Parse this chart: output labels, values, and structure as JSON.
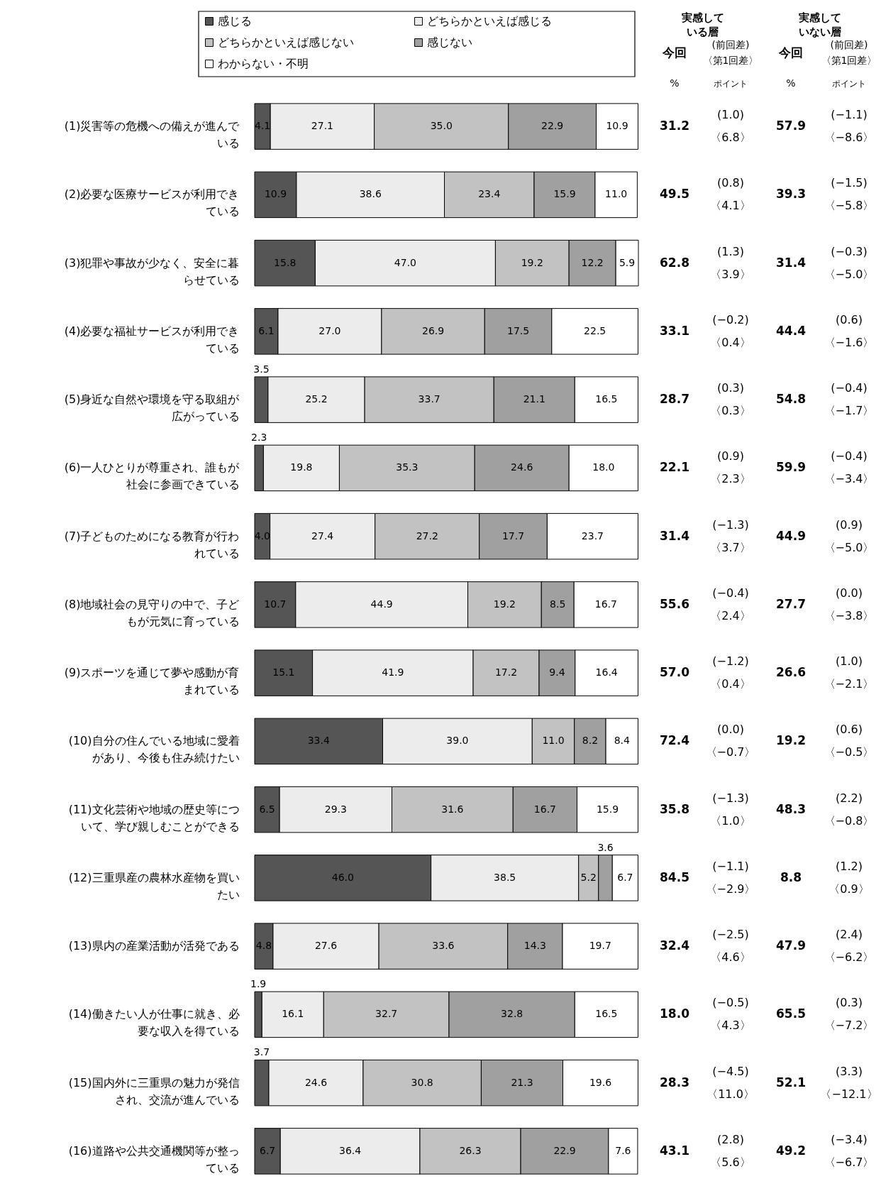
{
  "chart_data": {
    "type": "bar",
    "orientation": "horizontal",
    "stacked": true,
    "legend": "top",
    "categories": [
      "(1)災害等の危機への備えが進んでいる",
      "(2)必要な医療サービスが利用できている",
      "(3)犯罪や事故が少なく、安全に暮らせている",
      "(4)必要な福祉サービスが利用できている",
      "(5)身近な自然や環境を守る取組が広がっている",
      "(6)一人ひとりが尊重され、誰もが社会に参画できている",
      "(7)子どものためになる教育が行われている",
      "(8)地域社会の見守りの中で、子どもが元気に育っている",
      "(9)スポーツを通じて夢や感動が育まれている",
      "(10)自分の住んでいる地域に愛着があり、今後も住み続けたい",
      "(11)文化芸術や地域の歴史等について、学び親しむことができる",
      "(12)三重県産の農林水産物を買いたい",
      "(13)県内の産業活動が活発である",
      "(14)働きたい人が仕事に就き、必要な収入を得ている",
      "(15)国内外に三重県の魅力が発信され、交流が進んでいる",
      "(16)道路や公共交通機関等が整っている"
    ],
    "series": [
      {
        "name": "感じる",
        "color": "#555555",
        "values": [
          4.1,
          10.9,
          15.8,
          6.1,
          3.5,
          2.3,
          4.0,
          10.7,
          15.1,
          33.4,
          6.5,
          46.0,
          4.8,
          1.9,
          3.7,
          6.7
        ],
        "value_labels": [
          "4.1",
          "10.9",
          "15.8",
          "6.1",
          "3.5",
          "2.3",
          "4.0",
          "10.7",
          "15.1",
          "33.4",
          "6.5",
          "46.0",
          "4.8",
          "1.9",
          "3.7",
          "6.7"
        ]
      },
      {
        "name": "どちらかといえば感じる",
        "color": "#ececec",
        "values": [
          27.1,
          38.6,
          47.0,
          27.0,
          25.2,
          19.8,
          27.4,
          44.9,
          41.9,
          39.0,
          29.3,
          38.5,
          27.6,
          16.1,
          24.6,
          36.4
        ],
        "value_labels": [
          "27.1",
          "38.6",
          "47.0",
          "27.0",
          "25.2",
          "19.8",
          "27.4",
          "44.9",
          "41.9",
          "39.0",
          "29.3",
          "38.5",
          "27.6",
          "16.1",
          "24.6",
          "36.4"
        ]
      },
      {
        "name": "どちらかといえば感じない",
        "color": "#c2c2c2",
        "values": [
          35.0,
          23.4,
          19.2,
          26.9,
          33.7,
          35.3,
          27.2,
          19.2,
          17.2,
          11.0,
          31.6,
          5.2,
          33.6,
          32.7,
          30.8,
          26.3
        ],
        "value_labels": [
          "35.0",
          "23.4",
          "19.2",
          "26.9",
          "33.7",
          "35.3",
          "27.2",
          "19.2",
          "17.2",
          "11.0",
          "31.6",
          "5.2",
          "33.6",
          "32.7",
          "30.8",
          "26.3"
        ]
      },
      {
        "name": "感じない",
        "color": "#a0a0a0",
        "values": [
          22.9,
          15.9,
          12.2,
          17.5,
          21.1,
          24.6,
          17.7,
          8.5,
          9.4,
          8.2,
          16.7,
          3.6,
          14.3,
          32.8,
          21.3,
          22.9
        ],
        "value_labels": [
          "22.9",
          "15.9",
          "12.2",
          "17.5",
          "21.1",
          "24.6",
          "17.7",
          "8.5",
          "9.4",
          "8.2",
          "16.7",
          "3.6",
          "14.3",
          "32.8",
          "21.3",
          "22.9"
        ]
      },
      {
        "name": "わからない・不明",
        "color": "#ffffff",
        "values": [
          10.9,
          11.0,
          5.9,
          22.5,
          16.5,
          18.0,
          23.7,
          16.7,
          16.4,
          8.4,
          15.9,
          6.7,
          19.7,
          16.5,
          19.6,
          7.6
        ],
        "value_labels": [
          "10.9",
          "11.0",
          "5.9",
          "22.5",
          "16.5",
          "18.0",
          "23.7",
          "16.7",
          "16.4",
          "8.4",
          "15.9",
          "6.7",
          "19.7",
          "16.5",
          "19.6",
          "7.6"
        ]
      }
    ],
    "annotations": [
      "実感している層",
      "実感していない層",
      "今回",
      "(前回差)",
      "〈第1回差〉",
      "今回",
      "(前回差)",
      "〈第1回差〉",
      "%",
      "ポイント",
      "%",
      "ポイント",
      "31.2",
      "(1.0)",
      "〈6.8〉",
      "57.9",
      "(−1.1)",
      "〈−8.6〉",
      "49.5",
      "(0.8)",
      "〈4.1〉",
      "39.3",
      "(−1.5)",
      "〈−5.8〉",
      "62.8",
      "(1.3)",
      "〈3.9〉",
      "31.4",
      "(−0.3)",
      "〈−5.0〉",
      "33.1",
      "(−0.2)",
      "〈0.4〉",
      "44.4",
      "(0.6)",
      "〈−1.6〉",
      "28.7",
      "(0.3)",
      "〈0.3〉",
      "54.8",
      "(−0.4)",
      "〈−1.7〉",
      "22.1",
      "(0.9)",
      "〈2.3〉",
      "59.9",
      "(−0.4)",
      "〈−3.4〉",
      "31.4",
      "(−1.3)",
      "〈3.7〉",
      "44.9",
      "(0.9)",
      "〈−5.0〉",
      "55.6",
      "(−0.4)",
      "〈2.4〉",
      "27.7",
      "(0.0)",
      "〈−3.8〉",
      "57.0",
      "(−1.2)",
      "〈0.4〉",
      "26.6",
      "(1.0)",
      "〈−2.1〉",
      "72.4",
      "(0.0)",
      "〈−0.7〉",
      "19.2",
      "(0.6)",
      "〈−0.5〉",
      "35.8",
      "(−1.3)",
      "〈1.0〉",
      "48.3",
      "(2.2)",
      "〈−0.8〉",
      "84.5",
      "(−1.1)",
      "〈−2.9〉",
      "8.8",
      "(1.2)",
      "〈0.9〉",
      "32.4",
      "(−2.5)",
      "〈4.6〉",
      "47.9",
      "(2.4)",
      "〈−6.2〉",
      "18.0",
      "(−0.5)",
      "〈4.3〉",
      "65.5",
      "(0.3)",
      "〈−7.2〉",
      "28.3",
      "(−4.5)",
      "〈11.0〉",
      "52.1",
      "(3.3)",
      "〈−12.1〉",
      "43.1",
      "(2.8)",
      "〈5.6〉",
      "49.2",
      "(−3.4)",
      "〈−6.7〉"
    ]
  }
}
